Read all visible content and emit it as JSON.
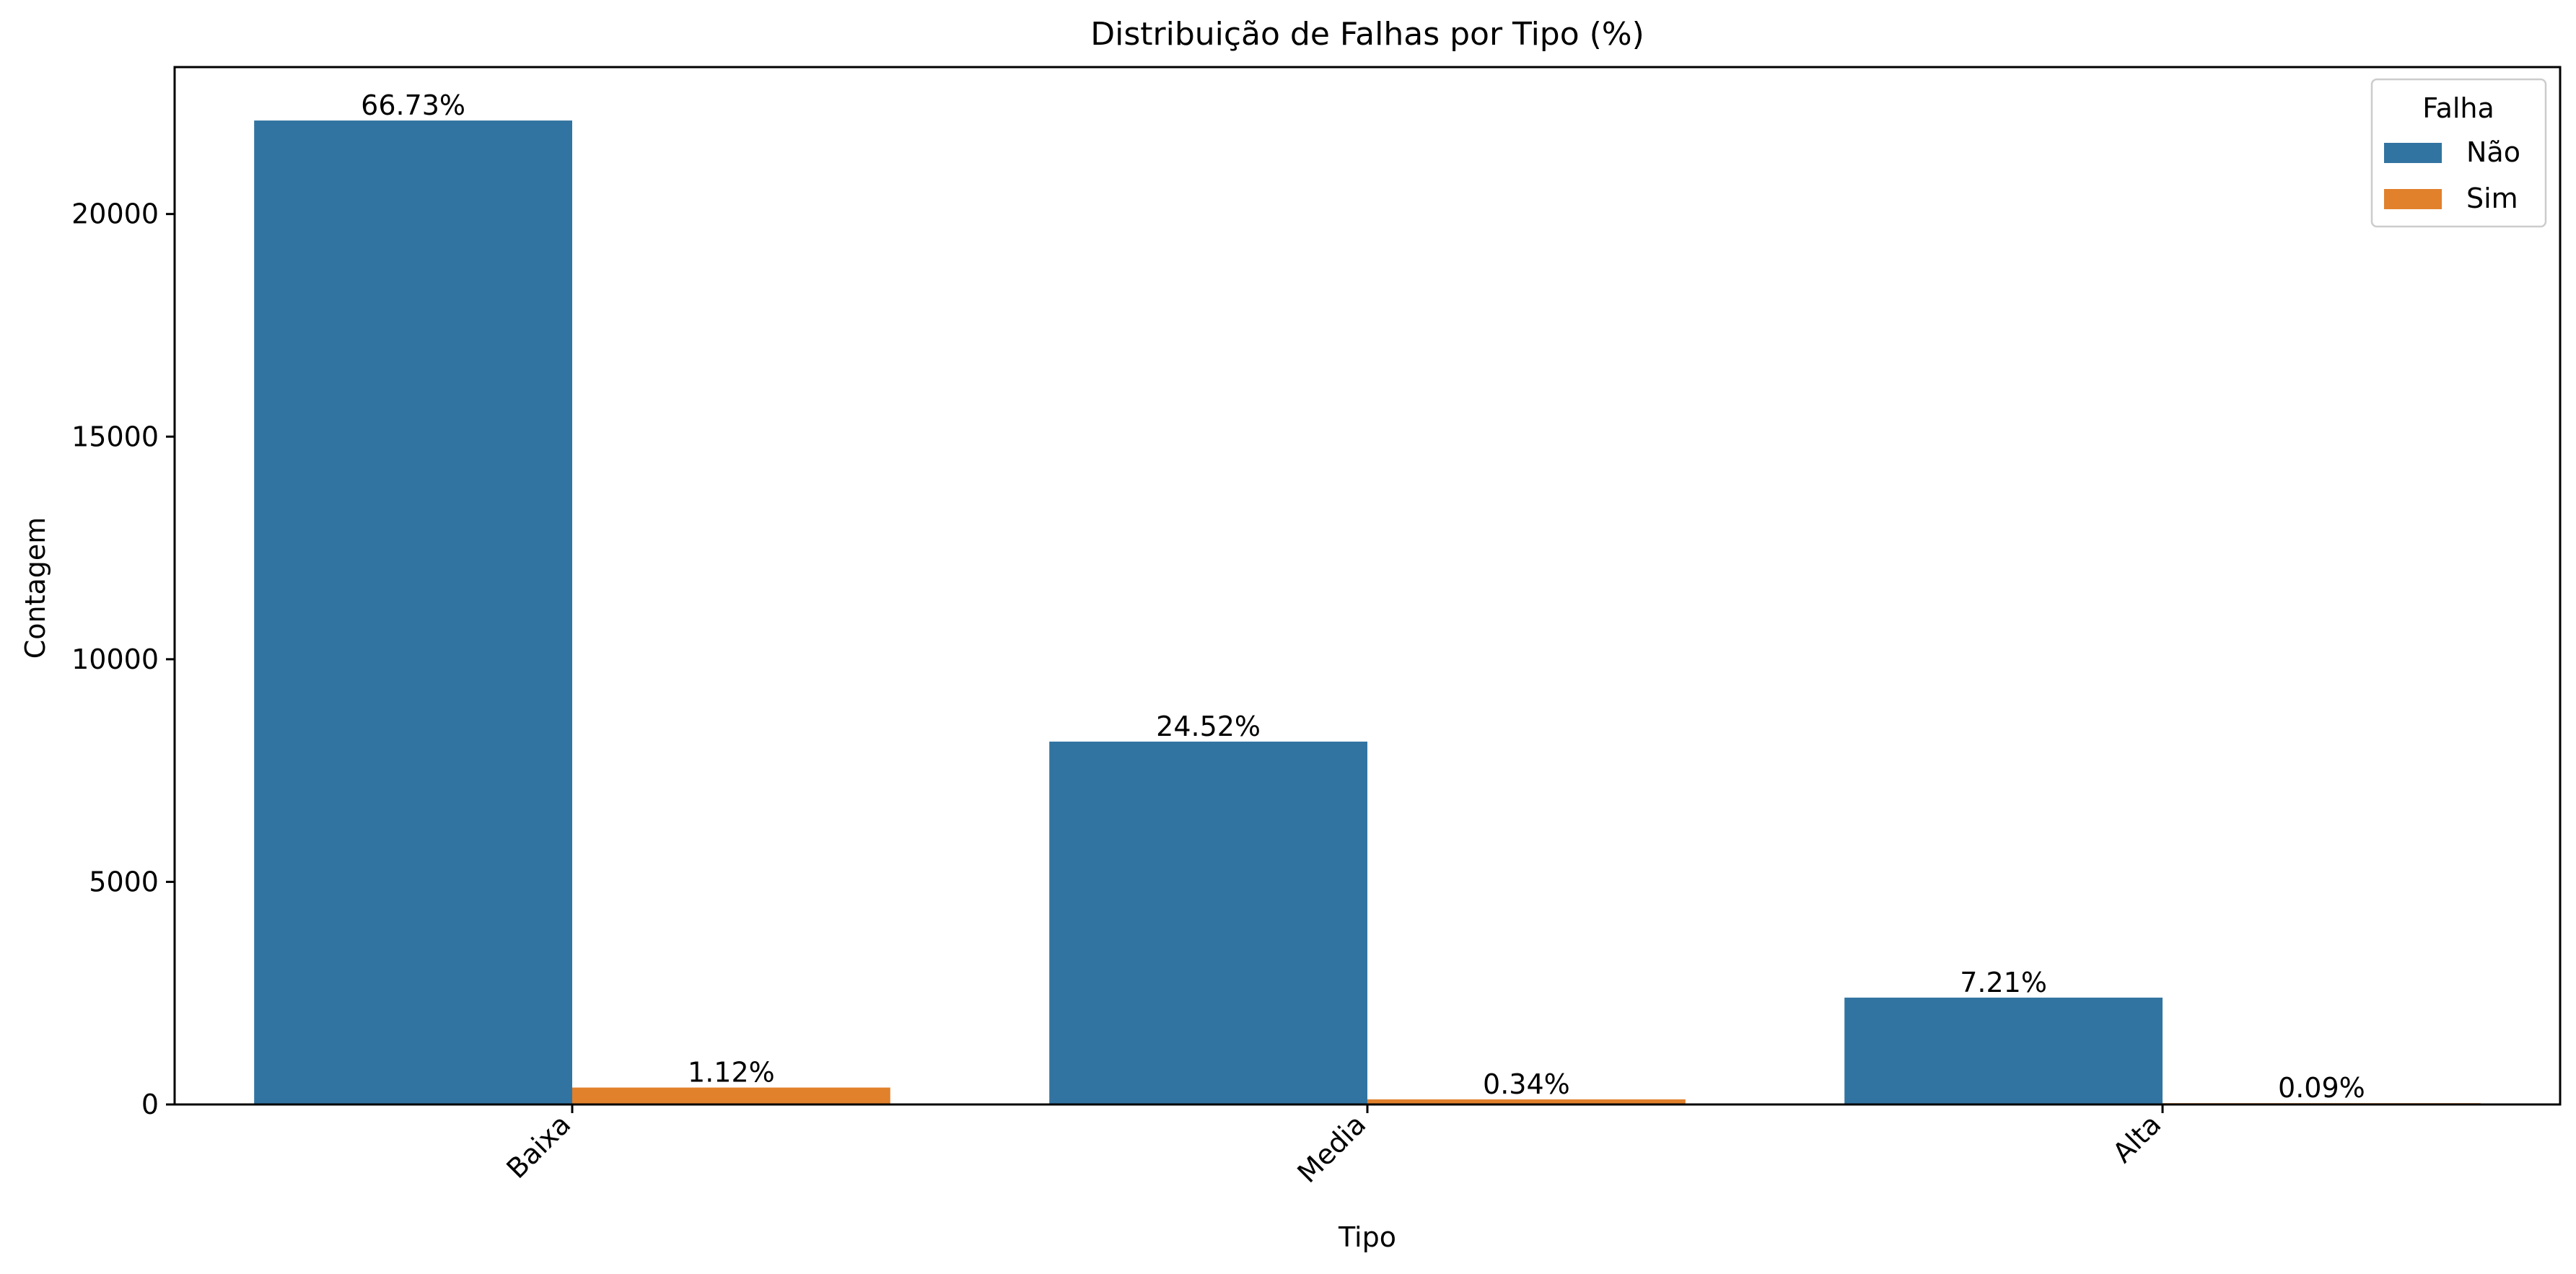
{
  "chart_data": {
    "type": "bar",
    "title": "Distribuição de Falhas por Tipo (%)",
    "xlabel": "Tipo",
    "ylabel": "Contagem",
    "categories": [
      "Baixa",
      "Media",
      "Alta"
    ],
    "ylim": [
      0,
      23300
    ],
    "yticks": [
      0,
      5000,
      10000,
      15000,
      20000
    ],
    "grid": false,
    "legend": {
      "title": "Falha",
      "placement": "top-right"
    },
    "series": [
      {
        "name": "Não",
        "color": "#3274a1",
        "values": [
          22100,
          8150,
          2400
        ],
        "labels": [
          "66.73%",
          "24.52%",
          "7.21%"
        ]
      },
      {
        "name": "Sim",
        "color": "#e1812c",
        "values": [
          380,
          115,
          30
        ],
        "labels": [
          "1.12%",
          "0.34%",
          "0.09%"
        ]
      }
    ]
  }
}
